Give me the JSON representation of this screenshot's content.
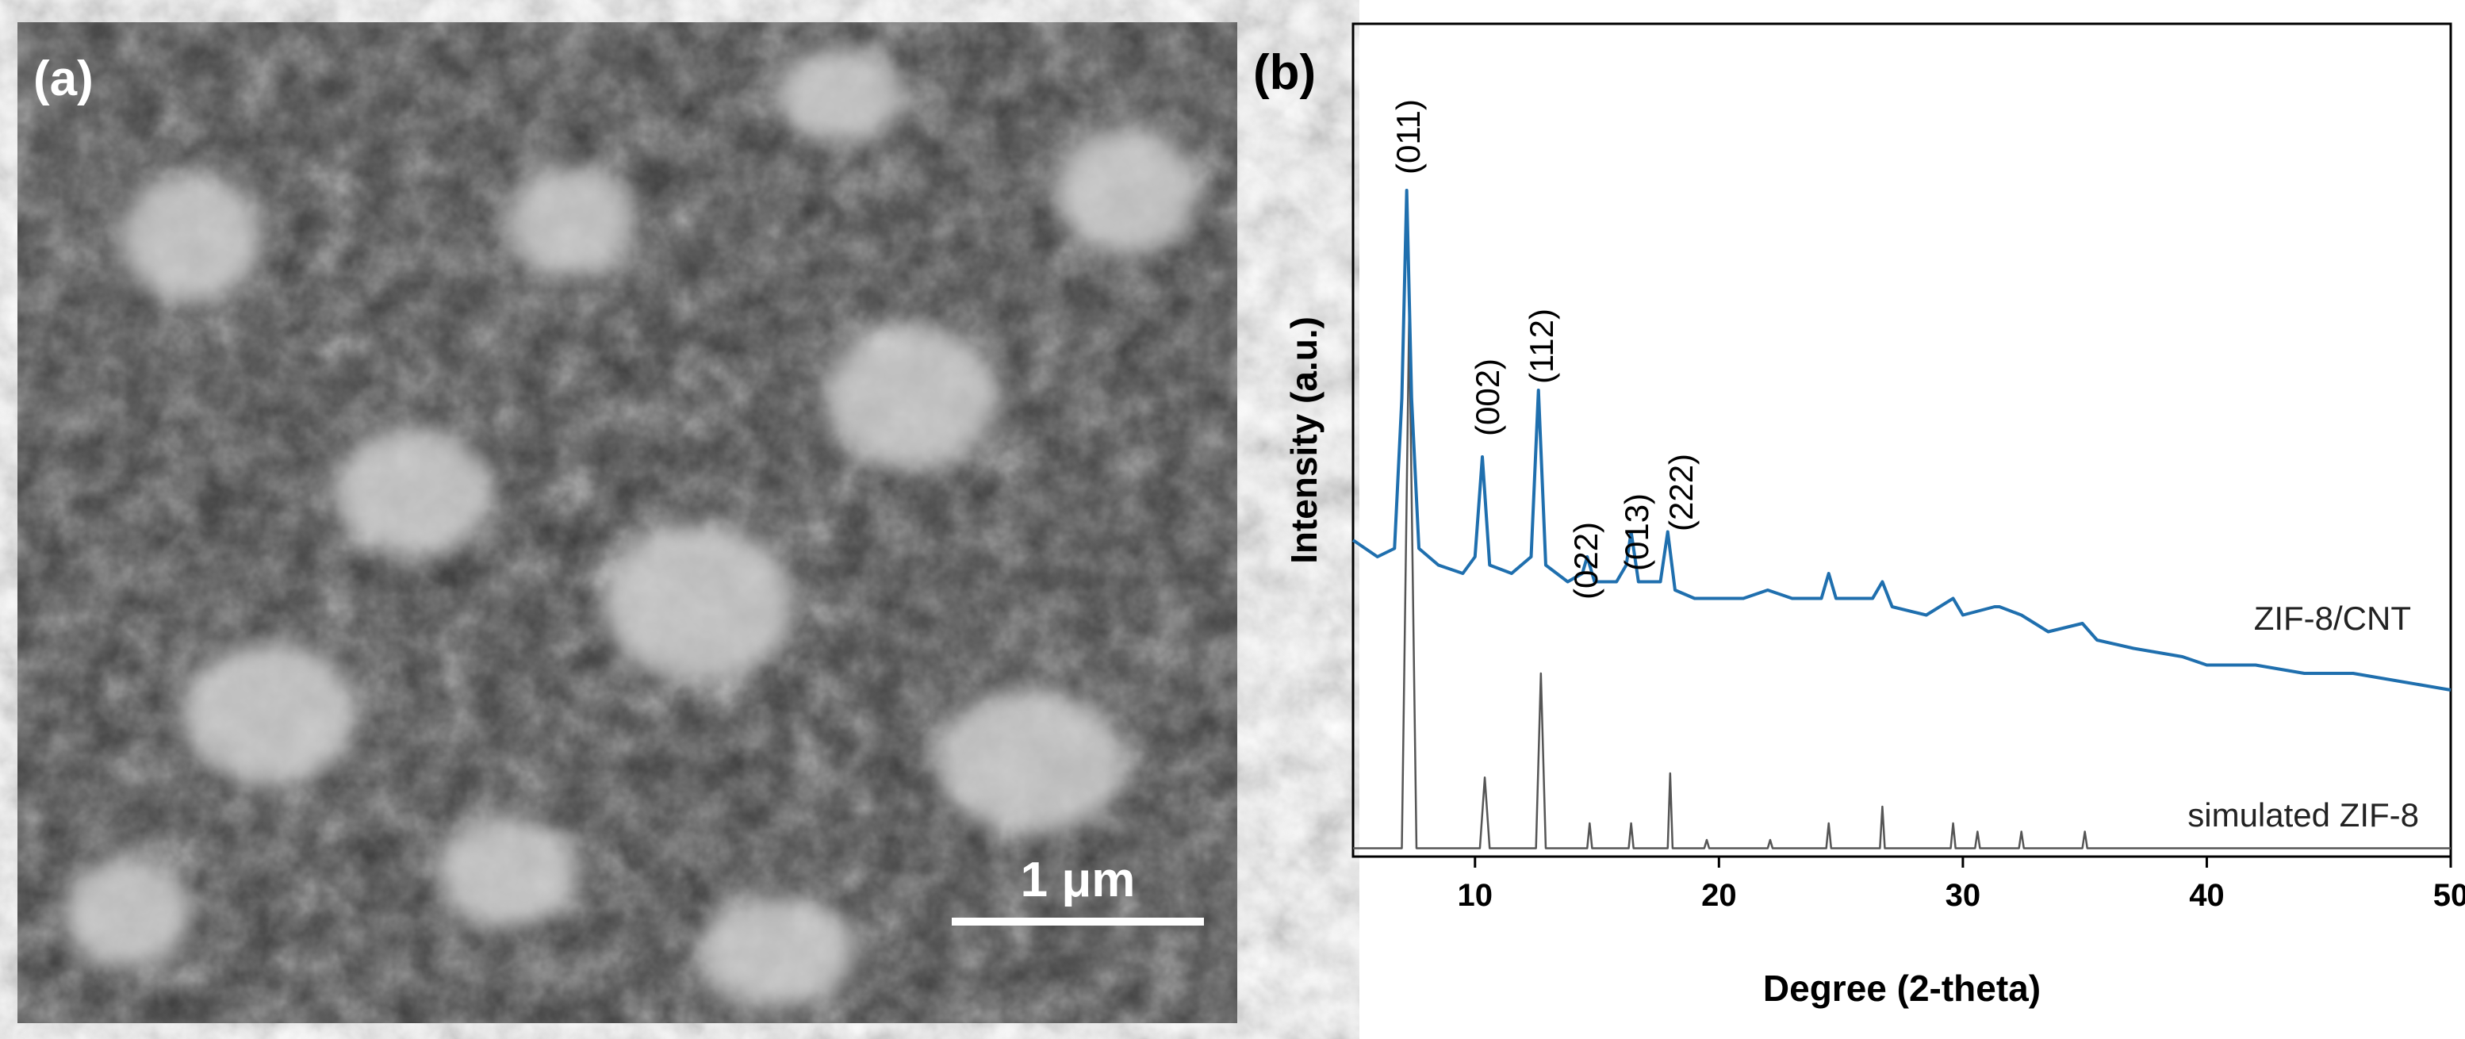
{
  "panel_a": {
    "label": "(a)",
    "scale_bar": "1 μm"
  },
  "chart_data": {
    "type": "line",
    "panel_label": "(b)",
    "xlabel": "Degree (2-theta)",
    "ylabel": "Intensity (a.u.)",
    "xlim": [
      5,
      50
    ],
    "xticks": [
      10,
      20,
      30,
      40,
      50
    ],
    "ylim": [
      0,
      100
    ],
    "annotations": [
      "(011)",
      "(002)",
      "(112)",
      "(022)",
      "(013)",
      "(222)"
    ],
    "series": [
      {
        "name": "ZIF-8/CNT",
        "color": "#1f6fae",
        "x": [
          5,
          6,
          6.7,
          7.0,
          7.2,
          7.4,
          7.7,
          8.5,
          9.5,
          10.0,
          10.3,
          10.6,
          11.5,
          12.3,
          12.6,
          12.9,
          13.8,
          14.4,
          14.6,
          14.9,
          15.8,
          16.2,
          16.4,
          16.7,
          17.6,
          17.9,
          18.2,
          19,
          20,
          21,
          22,
          23,
          24.2,
          24.5,
          24.8,
          26.3,
          26.7,
          27.1,
          28.5,
          29.6,
          30,
          31.3,
          31.5,
          32.4,
          33.5,
          34.9,
          35.5,
          37,
          39,
          40,
          42,
          44,
          46,
          48,
          50
        ],
        "values": [
          38,
          36,
          37,
          55,
          80,
          55,
          37,
          35,
          34,
          36,
          48,
          35,
          34,
          36,
          56,
          35,
          33,
          34,
          36,
          33,
          33,
          35,
          39,
          33,
          33,
          39,
          32,
          31,
          31,
          31,
          32,
          31,
          31,
          34,
          31,
          31,
          33,
          30,
          29,
          31,
          29,
          30,
          30,
          29,
          27,
          28,
          26,
          25,
          24,
          23,
          23,
          22,
          22,
          21,
          20
        ]
      },
      {
        "name": "simulated ZIF-8",
        "color": "#555555",
        "x": [
          5,
          7.0,
          7.3,
          7.6,
          10.2,
          10.4,
          10.6,
          12.5,
          12.7,
          12.9,
          14.6,
          14.7,
          14.8,
          16.3,
          16.4,
          16.5,
          17.9,
          18.0,
          18.1,
          19.4,
          19.5,
          19.6,
          22,
          22.1,
          22.2,
          24.4,
          24.5,
          24.6,
          26.6,
          26.7,
          26.8,
          29.5,
          29.6,
          29.7,
          30.5,
          30.6,
          30.7,
          32.3,
          32.4,
          32.5,
          34.9,
          35.0,
          35.1,
          50
        ],
        "values": [
          1,
          1,
          65,
          1,
          1,
          9.5,
          1,
          1,
          22,
          1,
          1,
          4,
          1,
          1,
          4,
          1,
          1,
          10,
          1,
          1,
          2,
          1,
          1,
          2,
          1,
          1,
          4,
          1,
          1,
          6,
          1,
          1,
          4,
          1,
          1,
          3,
          1,
          1,
          3,
          1,
          1,
          3,
          1,
          1
        ]
      }
    ]
  }
}
